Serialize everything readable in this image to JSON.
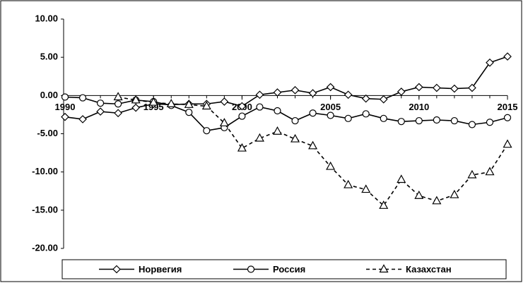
{
  "chart_data": {
    "type": "line",
    "x": [
      1990,
      1991,
      1992,
      1993,
      1994,
      1995,
      1996,
      1997,
      1998,
      1999,
      2000,
      2001,
      2002,
      2003,
      2004,
      2005,
      2006,
      2007,
      2008,
      2009,
      2010,
      2011,
      2012,
      2013,
      2014,
      2015
    ],
    "series": [
      {
        "name": "Норвегия",
        "color": "#000000",
        "marker": "diamond",
        "dash": false,
        "values": [
          -2.8,
          -3.1,
          -2.1,
          -2.3,
          -1.6,
          -1.1,
          -1.2,
          -1.1,
          -1.1,
          -0.8,
          -1.4,
          0.1,
          0.4,
          0.7,
          0.3,
          1.1,
          0.1,
          -0.4,
          -0.5,
          0.5,
          1.1,
          1.0,
          0.9,
          1.0,
          4.3,
          5.1
        ]
      },
      {
        "name": "Россия",
        "color": "#000000",
        "marker": "circle",
        "dash": false,
        "values": [
          -0.2,
          -0.3,
          -1.0,
          -1.1,
          -0.6,
          -0.8,
          -1.3,
          -2.2,
          -4.6,
          -4.2,
          -2.7,
          -1.5,
          -2.0,
          -3.3,
          -2.3,
          -2.6,
          -3.0,
          -2.4,
          -3.0,
          -3.4,
          -3.3,
          -3.2,
          -3.3,
          -3.8,
          -3.5,
          -2.9
        ]
      },
      {
        "name": "Казахстан",
        "color": "#000000",
        "marker": "triangle",
        "dash": true,
        "values": [
          null,
          null,
          null,
          -0.2,
          -0.6,
          -0.9,
          -1.1,
          -1.2,
          -1.4,
          -3.6,
          -6.9,
          -5.6,
          -4.7,
          -5.7,
          -6.6,
          -9.3,
          -11.7,
          -12.3,
          -14.4,
          -11.0,
          -13.1,
          -13.8,
          -13.0,
          -10.4,
          -10.0,
          -6.4
        ]
      }
    ],
    "xlim": [
      1990,
      2015
    ],
    "xticks": [
      1990,
      1995,
      2000,
      2005,
      2010,
      2015
    ],
    "ylim": [
      -20,
      10
    ],
    "yticks": [
      {
        "value": -20,
        "label": "-20.00"
      },
      {
        "value": -15,
        "label": "-15.00"
      },
      {
        "value": -10,
        "label": "-10.00"
      },
      {
        "value": -5,
        "label": "-5.00"
      },
      {
        "value": 0,
        "label": "0.00"
      },
      {
        "value": 5,
        "label": "5.00"
      },
      {
        "value": 10,
        "label": "10.00"
      }
    ],
    "grid": false,
    "legend": "bottom"
  }
}
